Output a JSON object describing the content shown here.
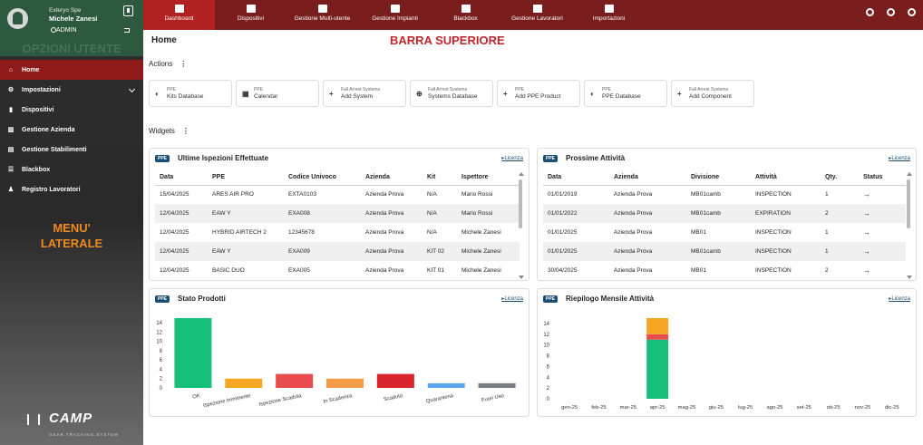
{
  "user": {
    "company": "Exteryo Spe",
    "name": "Michele Zanesi",
    "role": "ADMIN",
    "overlay_label": "OPZIONI UTENTE"
  },
  "sidebar": {
    "items": [
      {
        "label": "Home",
        "icon": "home-icon",
        "glyph": "⌂",
        "active": true
      },
      {
        "label": "Impostazioni",
        "icon": "gears-icon",
        "glyph": "⚙",
        "expandable": true
      },
      {
        "label": "Dispositivi",
        "icon": "device-icon",
        "glyph": "▮"
      },
      {
        "label": "Gestione Azienda",
        "icon": "building-icon",
        "glyph": "▥"
      },
      {
        "label": "Gestione Stabilimenti",
        "icon": "factory-icon",
        "glyph": "▤"
      },
      {
        "label": "Blackbox",
        "icon": "list-icon",
        "glyph": "☰"
      },
      {
        "label": "Registro Lavoratori",
        "icon": "users-icon",
        "glyph": "♟"
      }
    ],
    "overlay_label_line1": "MENU'",
    "overlay_label_line2": "LATERALE",
    "logo_text": "CAMP",
    "logo_sub": "GEAR TRACKING SYSTEM"
  },
  "topbar": {
    "tabs": [
      {
        "label": "Dashboard",
        "icon": "home-icon"
      },
      {
        "label": "Dispositivi",
        "icon": "list-icon"
      },
      {
        "label": "Gestione Multi-utente",
        "icon": "document-icon"
      },
      {
        "label": "Gestione Impianti",
        "icon": "bank-icon"
      },
      {
        "label": "Blackbox",
        "icon": "list-icon"
      },
      {
        "label": "Gestione Lavoratori",
        "icon": "users-icon"
      },
      {
        "label": "Importazioni",
        "icon": "upload-icon"
      }
    ],
    "overlay_label": "BARRA SUPERIORE"
  },
  "page": {
    "title": "Home",
    "actions_title": "Actions",
    "widgets_title": "Widgets"
  },
  "actions": [
    {
      "prefix": "PPE",
      "name": "Kits Database",
      "icon": "shield-icon",
      "glyph": "◐"
    },
    {
      "prefix": "PPE",
      "name": "Calendar",
      "icon": "calendar-icon",
      "glyph": "▦"
    },
    {
      "prefix": "Fall Arrest Systems",
      "name": "Add System",
      "icon": "plus-icon",
      "glyph": "+"
    },
    {
      "prefix": "Fall Arrest Systems",
      "name": "Systems Database",
      "icon": "globe-icon",
      "glyph": "⊕"
    },
    {
      "prefix": "PPE",
      "name": "Add PPE Product",
      "icon": "plus-icon",
      "glyph": "+"
    },
    {
      "prefix": "PPE",
      "name": "PPE Database",
      "icon": "shield-icon",
      "glyph": "◐"
    },
    {
      "prefix": "Fall Arrest Systems",
      "name": "Add Component",
      "icon": "plus-icon",
      "glyph": "+"
    }
  ],
  "widgets": {
    "badge": "PPE",
    "license_label": "Licenza",
    "inspections": {
      "title": "Ultime Ispezioni Effettuate",
      "headers": [
        "Data",
        "PPE",
        "Codice Univoco",
        "Azienda",
        "Kit",
        "Ispettore"
      ],
      "rows": [
        [
          "15/04/2025",
          "ARES AIR PRO",
          "EXTA0103",
          "Azienda Prova",
          "N/A",
          "Mario Rossi"
        ],
        [
          "12/04/2025",
          "EAW Y",
          "EXA008",
          "Azienda Prova",
          "N/A",
          "Mario Rossi"
        ],
        [
          "12/04/2025",
          "HYBRID AIRTECH 2",
          "12345678",
          "Azienda Prova",
          "N/A",
          "Michele Zanesi"
        ],
        [
          "12/04/2025",
          "EAW Y",
          "EXA009",
          "Azienda Prova",
          "KIT 02",
          "Michele Zanesi"
        ],
        [
          "12/04/2025",
          "BASIC DUO",
          "EXA005",
          "Azienda Prova",
          "KIT 01",
          "Michele Zanesi"
        ]
      ]
    },
    "activities": {
      "title": "Prossime Attività",
      "headers": [
        "Data",
        "Azienda",
        "Divisione",
        "Attività",
        "Qty.",
        "Status"
      ],
      "rows": [
        [
          "01/01/2019",
          "Azienda Prova",
          "MB01camb",
          "INSPECTION",
          "1",
          "→"
        ],
        [
          "01/01/2022",
          "Azienda Prova",
          "MB01camb",
          "EXPIRATION",
          "2",
          "→"
        ],
        [
          "01/01/2025",
          "Azienda Prova",
          "MB01",
          "INSPECTION",
          "1",
          "→"
        ],
        [
          "01/01/2025",
          "Azienda Prova",
          "MB01camb",
          "INSPECTION",
          "1",
          "→"
        ],
        [
          "30/04/2025",
          "Azienda Prova",
          "MB01",
          "INSPECTION",
          "2",
          "→"
        ]
      ]
    },
    "products": {
      "title": "Stato Prodotti"
    },
    "monthly": {
      "title": "Riepilogo Mensile Attività"
    }
  },
  "chart_data": [
    {
      "type": "bar",
      "title": "Stato Prodotti",
      "categories": [
        "OK",
        "Ispezione Imminente",
        "Ispezione Scaduta",
        "In Scadenza",
        "Scaduto",
        "Quarantena",
        "Fuori Uso"
      ],
      "values": [
        15,
        2,
        3,
        2,
        3,
        1,
        1
      ],
      "colors": [
        "#16c07a",
        "#f5a623",
        "#e84c4c",
        "#f39c4a",
        "#d9262c",
        "#5aa5f0",
        "#7a7f87"
      ],
      "ylim": [
        0,
        15
      ],
      "yticks": [
        0,
        2,
        4,
        6,
        8,
        10,
        12,
        14
      ]
    },
    {
      "type": "bar",
      "stacked": true,
      "title": "Riepilogo Mensile Attività",
      "categories": [
        "gen-25",
        "feb-25",
        "mar-25",
        "apr-25",
        "mag-25",
        "giu-25",
        "lug-25",
        "ago-25",
        "set-25",
        "ott-25",
        "nov-25",
        "dic-25"
      ],
      "series": [
        {
          "color": "#16c07a",
          "values": [
            0,
            0,
            0,
            11,
            0,
            0,
            0,
            0,
            0,
            0,
            0,
            0
          ]
        },
        {
          "color": "#e84c4c",
          "values": [
            0,
            0,
            0,
            1,
            0,
            0,
            0,
            0,
            0,
            0,
            0,
            0
          ]
        },
        {
          "color": "#f5a623",
          "values": [
            0,
            0,
            0,
            3,
            0,
            0,
            0,
            0,
            0,
            0,
            0,
            0
          ]
        }
      ],
      "ylim": [
        0,
        15
      ],
      "yticks": [
        0,
        2,
        4,
        6,
        8,
        10,
        12,
        14
      ]
    }
  ]
}
